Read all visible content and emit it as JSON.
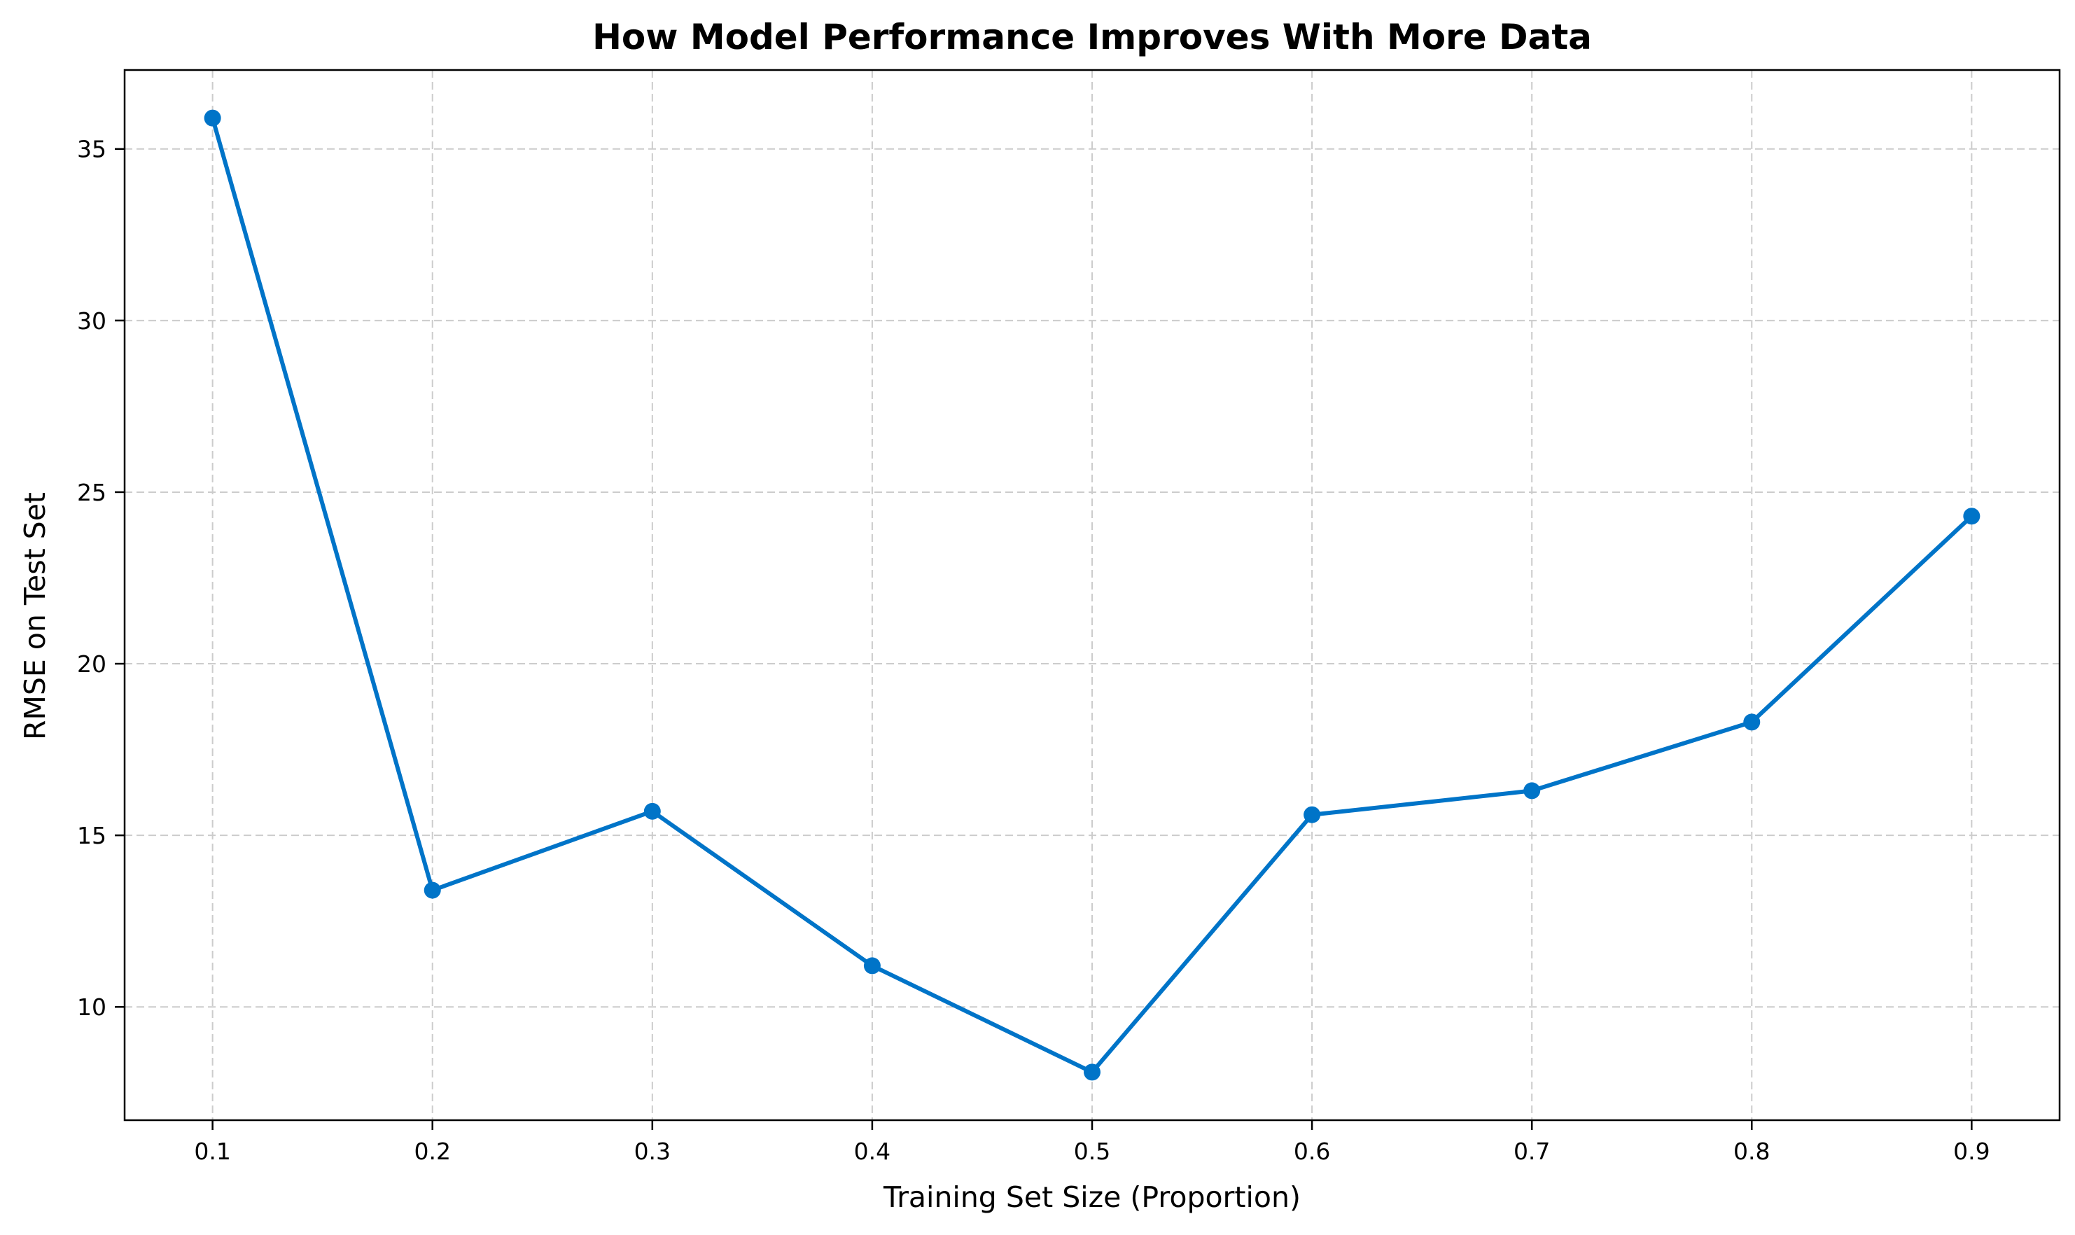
{
  "chart_data": {
    "type": "line",
    "title": "How Model Performance Improves With More Data",
    "xlabel": "Training Set Size (Proportion)",
    "ylabel": "RMSE on Test Set",
    "xlim": [
      0.06,
      0.94
    ],
    "ylim": [
      6.7,
      37.3
    ],
    "xticks": [
      0.1,
      0.2,
      0.3,
      0.4,
      0.5,
      0.6,
      0.7,
      0.8,
      0.9
    ],
    "xtick_labels": [
      "0.1",
      "0.2",
      "0.3",
      "0.4",
      "0.5",
      "0.6",
      "0.7",
      "0.8",
      "0.9"
    ],
    "yticks": [
      10,
      15,
      20,
      25,
      30,
      35
    ],
    "ytick_labels": [
      "10",
      "15",
      "20",
      "25",
      "30",
      "35"
    ],
    "grid": true,
    "series": [
      {
        "color": "#0074c8",
        "marker": "circle",
        "x": [
          0.1,
          0.2,
          0.3,
          0.4,
          0.5,
          0.6,
          0.7,
          0.8,
          0.9
        ],
        "y": [
          35.9,
          13.4,
          15.7,
          11.2,
          8.1,
          15.6,
          16.3,
          18.3,
          24.3
        ]
      }
    ]
  }
}
